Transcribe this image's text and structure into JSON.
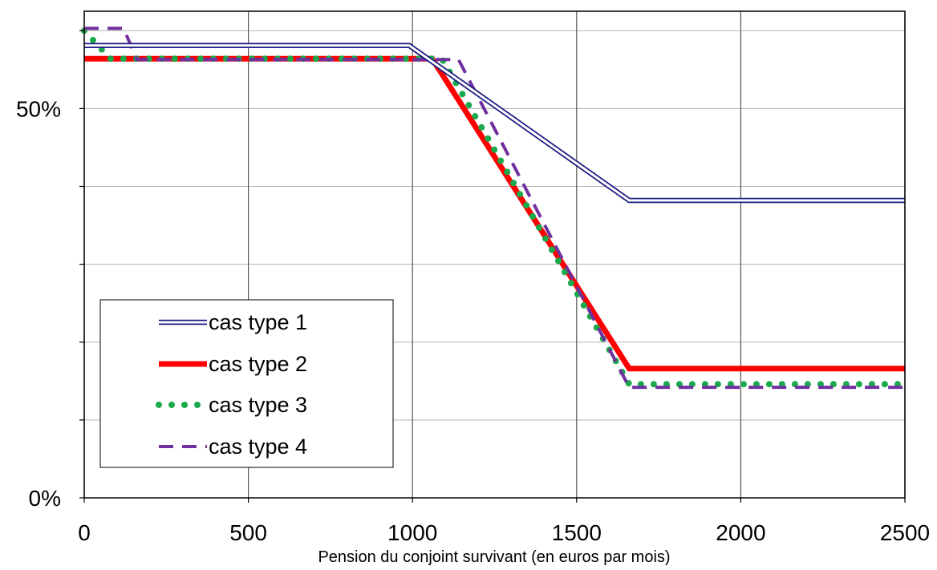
{
  "chart_data": {
    "type": "line",
    "title": "",
    "xlabel": "Pension du conjoint survivant (en euros par mois)",
    "ylabel": "",
    "xlim": [
      0,
      2500
    ],
    "ylim": [
      0,
      62.5
    ],
    "x_ticks": [
      {
        "value": 0,
        "label": "0"
      },
      {
        "value": 500,
        "label": "500"
      },
      {
        "value": 1000,
        "label": "1000"
      },
      {
        "value": 1500,
        "label": "1500"
      },
      {
        "value": 2000,
        "label": "2000"
      },
      {
        "value": 2500,
        "label": "2500"
      }
    ],
    "y_gridlines": [
      0,
      10,
      20,
      30,
      40,
      50,
      60
    ],
    "y_labeled_ticks": [
      {
        "value": 0,
        "label": "0%"
      },
      {
        "value": 50,
        "label": "50%"
      }
    ],
    "grid": true,
    "legend_position": "bottom-left",
    "series": [
      {
        "name": "cas type 1",
        "color": "#1a1a80",
        "style": "double",
        "points": [
          [
            0,
            58.1
          ],
          [
            990,
            58.1
          ],
          [
            1660,
            38.2
          ],
          [
            2500,
            38.2
          ]
        ]
      },
      {
        "name": "cas type 2",
        "color": "#ff0000",
        "style": "thick",
        "points": [
          [
            0,
            56.4
          ],
          [
            1060,
            56.4
          ],
          [
            1660,
            16.6
          ],
          [
            2500,
            16.6
          ]
        ]
      },
      {
        "name": "cas type 3",
        "color": "#1aaa4c",
        "style": "dotted",
        "points": [
          [
            0,
            60.0
          ],
          [
            80,
            56.4
          ],
          [
            1090,
            56.4
          ],
          [
            1660,
            14.6
          ],
          [
            2500,
            14.6
          ]
        ]
      },
      {
        "name": "cas type 4",
        "color": "#7030a0",
        "style": "dashed",
        "points": [
          [
            0,
            60.3
          ],
          [
            120,
            60.3
          ],
          [
            160,
            56.3
          ],
          [
            1140,
            56.3
          ],
          [
            1660,
            14.2
          ],
          [
            2500,
            14.2
          ]
        ]
      }
    ]
  }
}
